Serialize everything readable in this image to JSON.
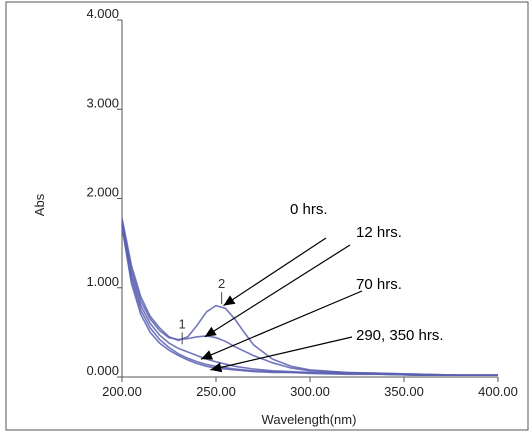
{
  "chart_data": {
    "type": "line",
    "xlabel": "Wavelength(nm)",
    "ylabel": "Abs",
    "xlim": [
      200,
      400
    ],
    "ylim": [
      0,
      4
    ],
    "x_ticks": [
      "200.00",
      "250.00",
      "300.00",
      "350.00",
      "400.00"
    ],
    "y_ticks": [
      "0.000",
      "1.000",
      "2.000",
      "3.000",
      "4.000"
    ],
    "peak_labels": [
      {
        "label": "1",
        "x": 232,
        "y": 0.5
      },
      {
        "label": "2",
        "x": 253,
        "y": 0.95
      }
    ],
    "annotations": [
      {
        "text": "0 hrs.",
        "target_x": 254,
        "target_y": 0.8
      },
      {
        "text": "12 hrs.",
        "target_x": 244,
        "target_y": 0.45
      },
      {
        "text": "70 hrs.",
        "target_x": 242,
        "target_y": 0.2
      },
      {
        "text": "290, 350 hrs.",
        "target_x": 247,
        "target_y": 0.08
      }
    ],
    "series": [
      {
        "x": [
          200,
          205,
          210,
          215,
          220,
          225,
          230,
          235,
          240,
          245,
          250,
          255,
          260,
          265,
          270,
          280,
          290,
          300,
          320,
          340,
          360,
          380,
          400
        ],
        "y": [
          1.78,
          1.25,
          0.9,
          0.68,
          0.55,
          0.45,
          0.41,
          0.45,
          0.58,
          0.73,
          0.8,
          0.77,
          0.65,
          0.5,
          0.36,
          0.2,
          0.12,
          0.08,
          0.05,
          0.04,
          0.03,
          0.02,
          0.02
        ]
      },
      {
        "x": [
          200,
          205,
          210,
          215,
          220,
          225,
          230,
          235,
          240,
          245,
          250,
          255,
          260,
          270,
          280,
          290,
          300,
          320,
          340,
          360,
          380,
          400
        ],
        "y": [
          1.75,
          1.2,
          0.85,
          0.65,
          0.52,
          0.44,
          0.42,
          0.43,
          0.45,
          0.46,
          0.44,
          0.4,
          0.34,
          0.24,
          0.16,
          0.1,
          0.07,
          0.05,
          0.04,
          0.03,
          0.02,
          0.02
        ]
      },
      {
        "x": [
          200,
          205,
          210,
          215,
          220,
          225,
          230,
          235,
          240,
          245,
          250,
          260,
          270,
          280,
          290,
          300,
          320,
          340,
          360,
          380,
          400
        ],
        "y": [
          1.72,
          1.15,
          0.8,
          0.6,
          0.47,
          0.38,
          0.32,
          0.28,
          0.24,
          0.2,
          0.17,
          0.12,
          0.09,
          0.07,
          0.06,
          0.05,
          0.04,
          0.03,
          0.02,
          0.02,
          0.02
        ]
      },
      {
        "x": [
          200,
          205,
          210,
          215,
          220,
          225,
          230,
          235,
          240,
          245,
          250,
          260,
          270,
          280,
          290,
          300,
          320,
          340,
          360,
          380,
          400
        ],
        "y": [
          1.7,
          1.1,
          0.75,
          0.55,
          0.42,
          0.33,
          0.26,
          0.21,
          0.17,
          0.14,
          0.12,
          0.09,
          0.07,
          0.06,
          0.05,
          0.05,
          0.04,
          0.03,
          0.02,
          0.02,
          0.02
        ]
      },
      {
        "x": [
          200,
          205,
          210,
          215,
          220,
          225,
          230,
          235,
          240,
          245,
          250,
          260,
          270,
          280,
          290,
          300,
          320,
          340,
          360,
          380,
          400
        ],
        "y": [
          1.68,
          1.05,
          0.7,
          0.5,
          0.38,
          0.3,
          0.24,
          0.19,
          0.15,
          0.12,
          0.1,
          0.08,
          0.06,
          0.05,
          0.05,
          0.04,
          0.03,
          0.03,
          0.02,
          0.02,
          0.02
        ]
      }
    ]
  }
}
